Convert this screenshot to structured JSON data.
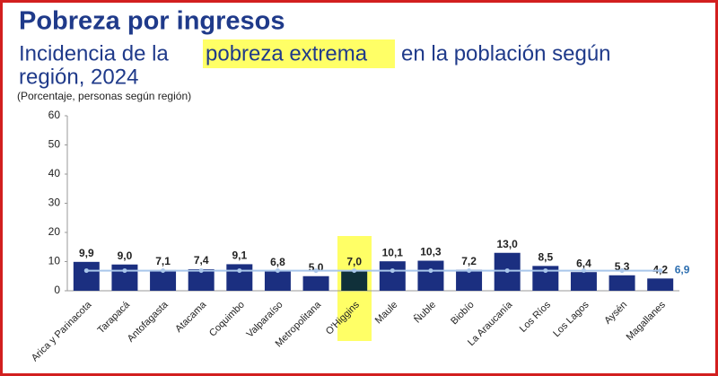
{
  "chart_data": {
    "type": "bar",
    "title": "Pobreza por ingresos",
    "subtitle": [
      "Incidencia de la",
      "pobreza extrema",
      "en la población según",
      "región, 2024"
    ],
    "y_label": "(Porcentaje, personas según región)",
    "categories": [
      "Arica y Parinacota",
      "Tarapacá",
      "Antofagasta",
      "Atacama",
      "Coquimbo",
      "Valparaíso",
      "Metropolitana",
      "O'Higgins",
      "Maule",
      "Ñuble",
      "Biobío",
      "La Araucanía",
      "Los Ríos",
      "Los Lagos",
      "Aysén",
      "Magallanes"
    ],
    "values": [
      9.9,
      9.0,
      7.1,
      7.4,
      9.1,
      6.8,
      5.0,
      7.0,
      10.1,
      10.3,
      7.2,
      13.0,
      8.5,
      6.4,
      5.3,
      4.2
    ],
    "value_labels": [
      "9,9",
      "9,0",
      "7,1",
      "7,4",
      "9,1",
      "6,8",
      "5,0",
      "7,0",
      "10,1",
      "10,3",
      "7,2",
      "13,0",
      "8,5",
      "6,4",
      "5,3",
      "4,2"
    ],
    "colors": [
      "#1b2f80",
      "#1b2f80",
      "#1b2f80",
      "#1b2f80",
      "#1b2f80",
      "#1b2f80",
      "#1b2f80",
      "#10303a",
      "#1b2f80",
      "#1b2f80",
      "#1b2f80",
      "#1b2f80",
      "#1b2f80",
      "#1b2f80",
      "#1b2f80",
      "#1b2f80"
    ],
    "reference_line": {
      "value": 6.9,
      "label": "6,9",
      "color": "#a9c6ea"
    },
    "ylim": [
      0,
      60
    ],
    "yticks": [
      0,
      10,
      20,
      30,
      40,
      50,
      60
    ]
  }
}
